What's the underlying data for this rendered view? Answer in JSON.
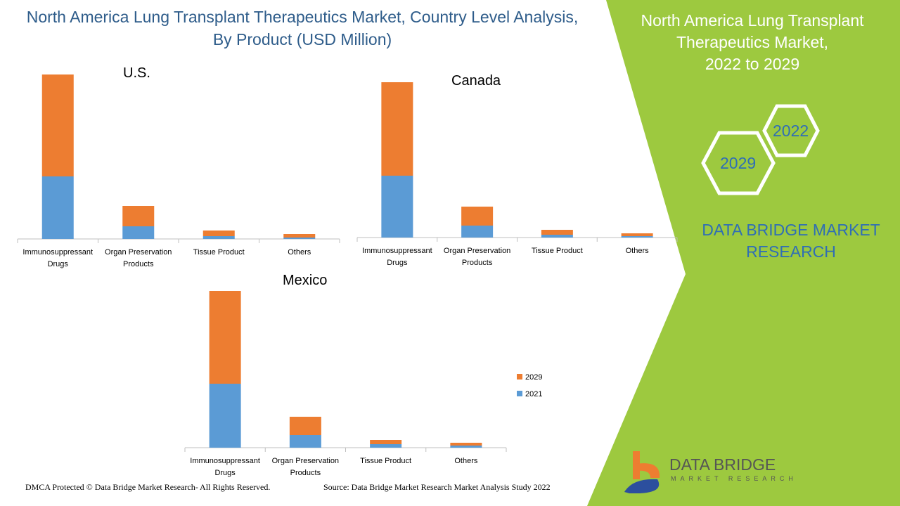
{
  "title_line1": "North America Lung Transplant Therapeutics Market, Country Level Analysis,",
  "title_line2": "By Product (USD Million)",
  "right_panel": {
    "title_line1": "North America Lung Transplant",
    "title_line2": "Therapeutics Market,",
    "title_line3": "2022 to 2029",
    "hex_a": "2022",
    "hex_b": "2029",
    "brand_line1": "DATA BRIDGE MARKET",
    "brand_line2": "RESEARCH",
    "logo_text": "DATA BRIDGE",
    "logo_sub": "MARKET RESEARCH"
  },
  "footer": {
    "left": "DMCA Protected © Data Bridge Market Research- All Rights Reserved.",
    "right": "Source: Data Bridge Market Research Market Analysis Study 2022"
  },
  "colors": {
    "2021": "#5b9bd5",
    "2029": "#ed7d31",
    "panel": "#9dc93f"
  },
  "legend": [
    {
      "label": "2029",
      "color": "#ed7d31"
    },
    {
      "label": "2021",
      "color": "#5b9bd5"
    }
  ],
  "chart_data": [
    {
      "type": "bar",
      "stacked": true,
      "title": "U.S.",
      "categories": [
        "Immunosuppressant Drugs",
        "Organ Preservation Products",
        "Tissue Product",
        "Others"
      ],
      "series": [
        {
          "name": "2021",
          "values": [
            89,
            18,
            4,
            2
          ]
        },
        {
          "name": "2029",
          "values": [
            145,
            29,
            8,
            5
          ]
        }
      ]
    },
    {
      "type": "bar",
      "stacked": true,
      "title": "Canada",
      "categories": [
        "Immunosuppressant Drugs",
        "Organ Preservation Products",
        "Tissue Product",
        "Others"
      ],
      "series": [
        {
          "name": "2021",
          "values": [
            88,
            17,
            4,
            2
          ]
        },
        {
          "name": "2029",
          "values": [
            133,
            27,
            7,
            4
          ]
        }
      ]
    },
    {
      "type": "bar",
      "stacked": true,
      "title": "Mexico",
      "categories": [
        "Immunosuppressant Drugs",
        "Organ Preservation Products",
        "Tissue Product",
        "Others"
      ],
      "series": [
        {
          "name": "2021",
          "values": [
            91,
            18,
            5,
            3
          ]
        },
        {
          "name": "2029",
          "values": [
            132,
            26,
            6,
            4
          ]
        }
      ]
    }
  ]
}
